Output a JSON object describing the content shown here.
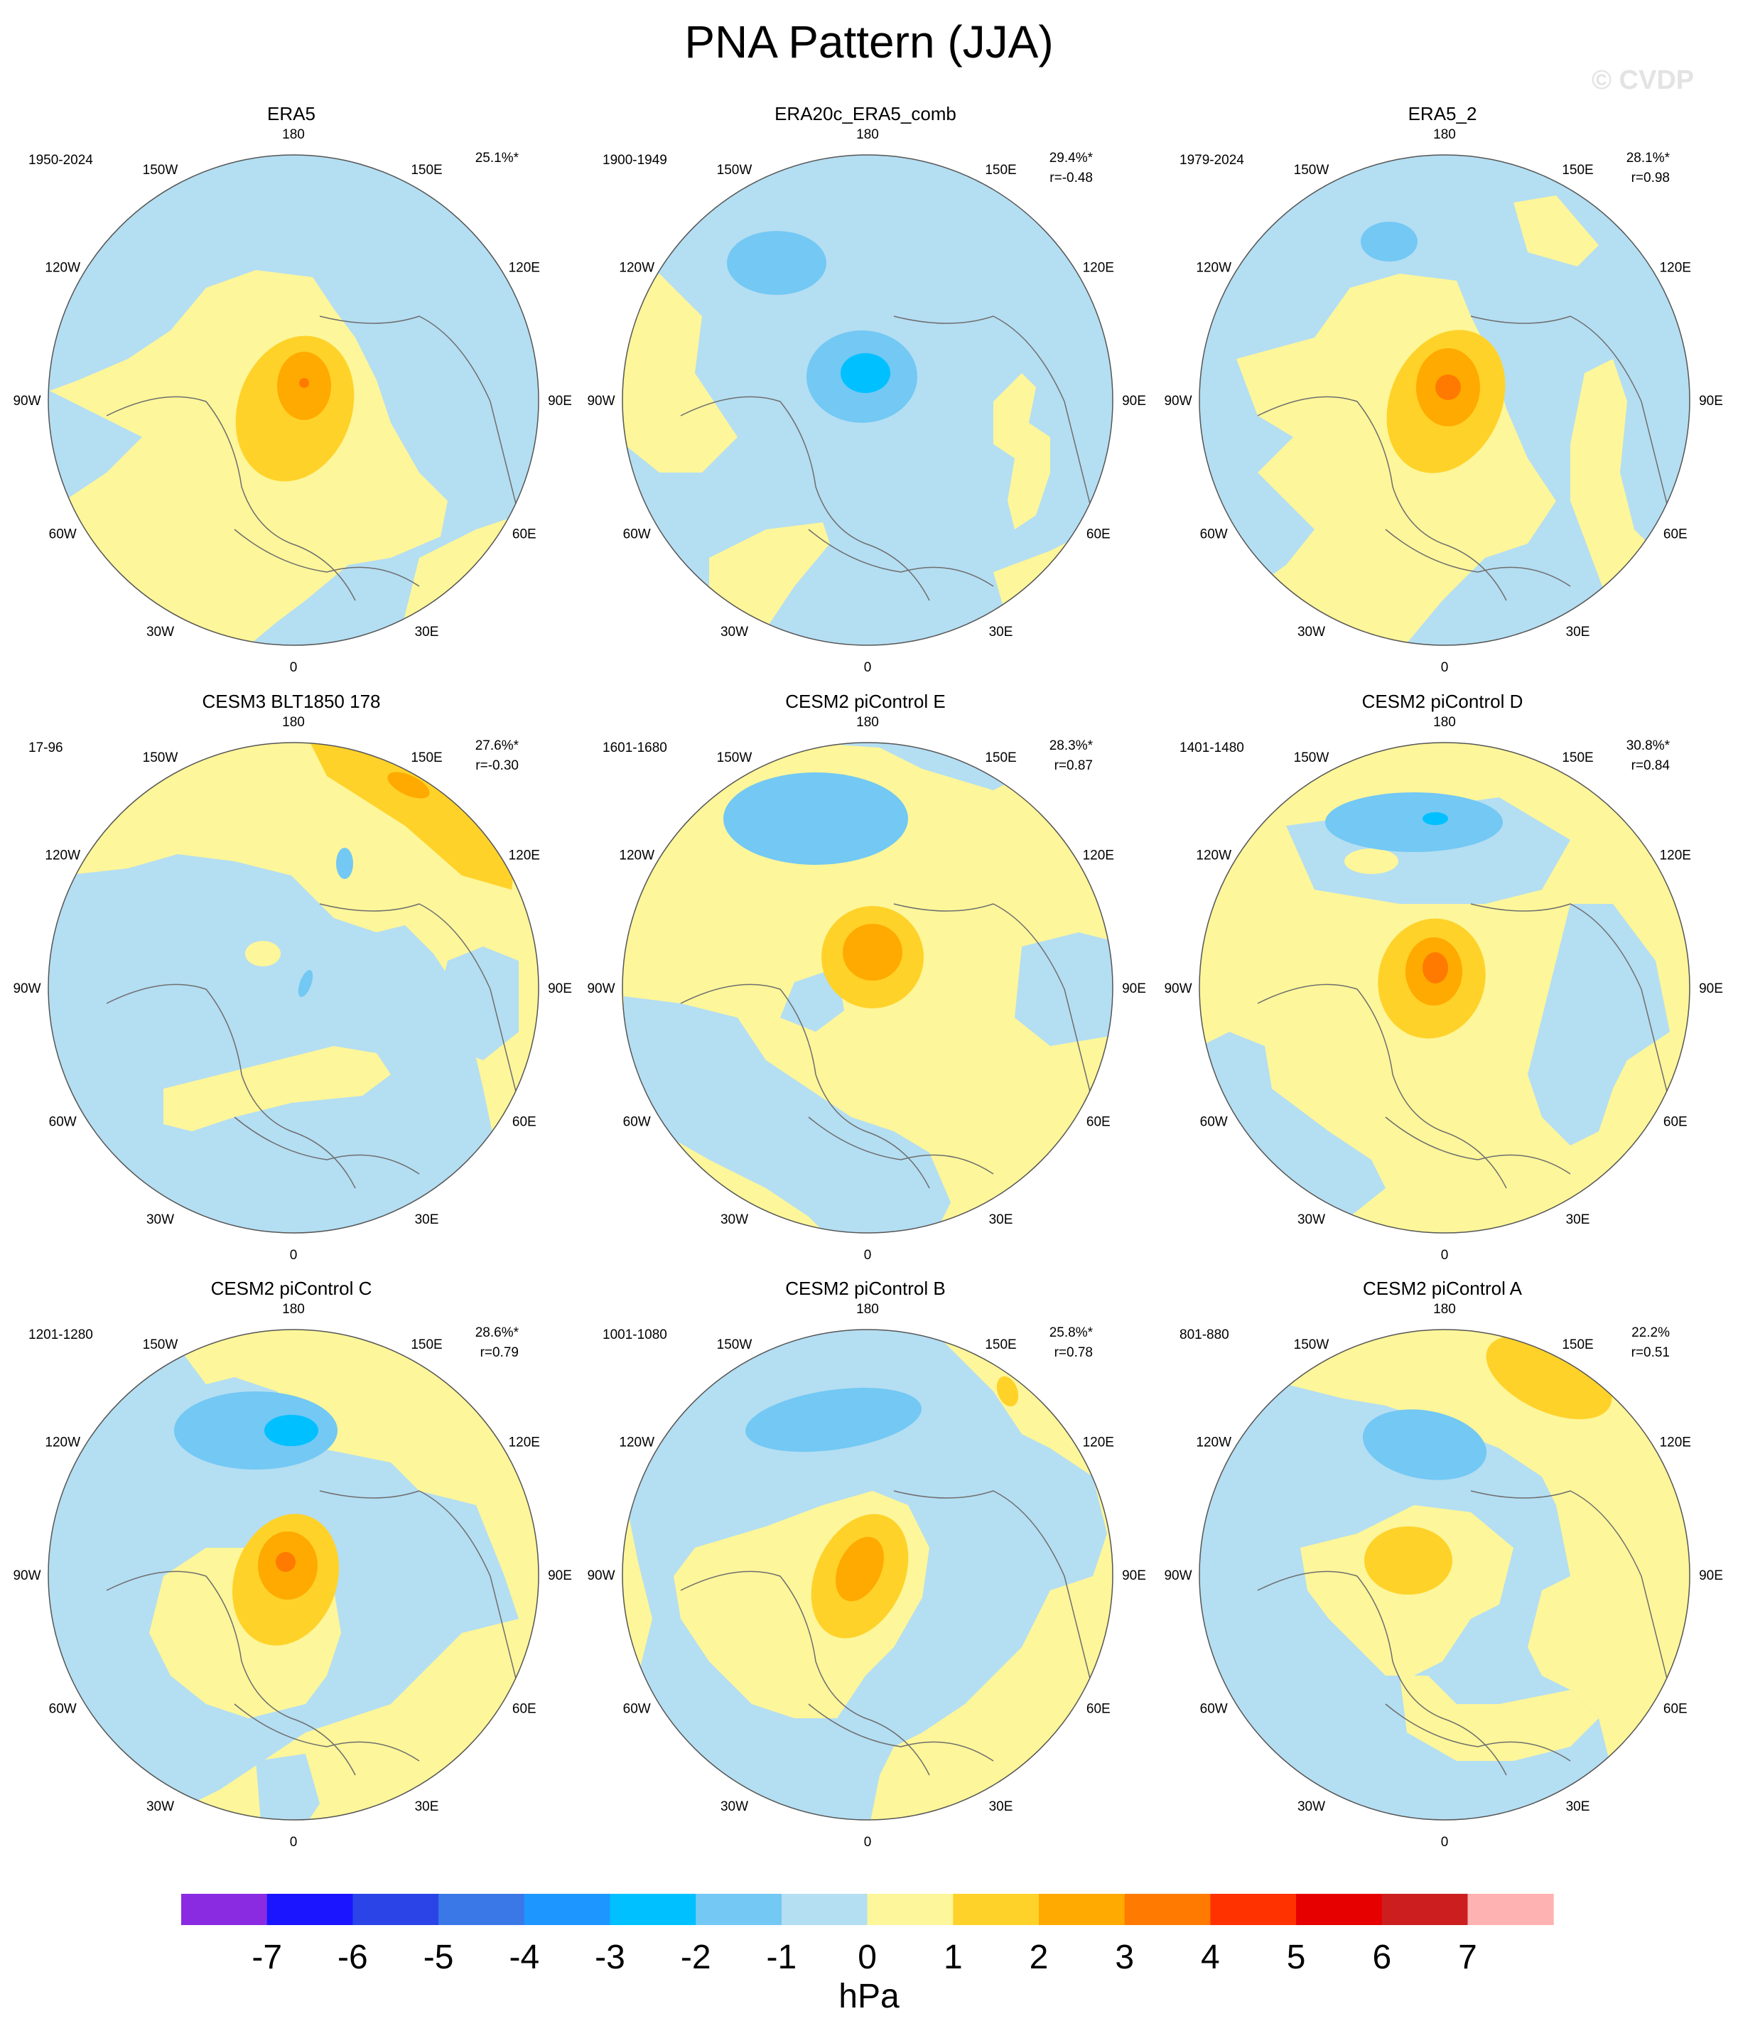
{
  "title": "PNA Pattern (JJA)",
  "watermark": "© CVDP",
  "lon_labels": [
    "180",
    "150E",
    "120E",
    "90E",
    "60E",
    "30E",
    "0",
    "30W",
    "60W",
    "90W",
    "120W",
    "150W"
  ],
  "panels": [
    {
      "title": "ERA5",
      "period": "1950-2024",
      "pct": "25.1%*",
      "r": ""
    },
    {
      "title": "ERA20c_ERA5_comb",
      "period": "1900-1949",
      "pct": "29.4%*",
      "r": "r=-0.48"
    },
    {
      "title": "ERA5_2",
      "period": "1979-2024",
      "pct": "28.1%*",
      "r": "r=0.98"
    },
    {
      "title": "CESM3 BLT1850 178",
      "period": "17-96",
      "pct": "27.6%*",
      "r": "r=-0.30"
    },
    {
      "title": "CESM2 piControl E",
      "period": "1601-1680",
      "pct": "28.3%*",
      "r": "r=0.87"
    },
    {
      "title": "CESM2 piControl D",
      "period": "1401-1480",
      "pct": "30.8%*",
      "r": "r=0.84"
    },
    {
      "title": "CESM2 piControl C",
      "period": "1201-1280",
      "pct": "28.6%*",
      "r": "r=0.79"
    },
    {
      "title": "CESM2 piControl B",
      "period": "1001-1080",
      "pct": "25.8%*",
      "r": "r=0.78"
    },
    {
      "title": "CESM2 piControl A",
      "period": "801-880",
      "pct": "22.2%",
      "r": "r=0.51"
    }
  ],
  "colorbar": {
    "unit": "hPa",
    "ticks": [
      "-7",
      "-6",
      "-5",
      "-4",
      "-3",
      "-2",
      "-1",
      "0",
      "1",
      "2",
      "3",
      "4",
      "5",
      "6",
      "7"
    ],
    "colors": [
      "#8a2be2",
      "#1a14ff",
      "#2b44e8",
      "#3a78e8",
      "#1e96ff",
      "#00c0ff",
      "#73c8f4",
      "#b4def2",
      "#fdf69a",
      "#ffd22a",
      "#ffaa00",
      "#ff7a00",
      "#ff3200",
      "#e60000",
      "#cc1e1e",
      "#ffb2b2"
    ]
  }
}
